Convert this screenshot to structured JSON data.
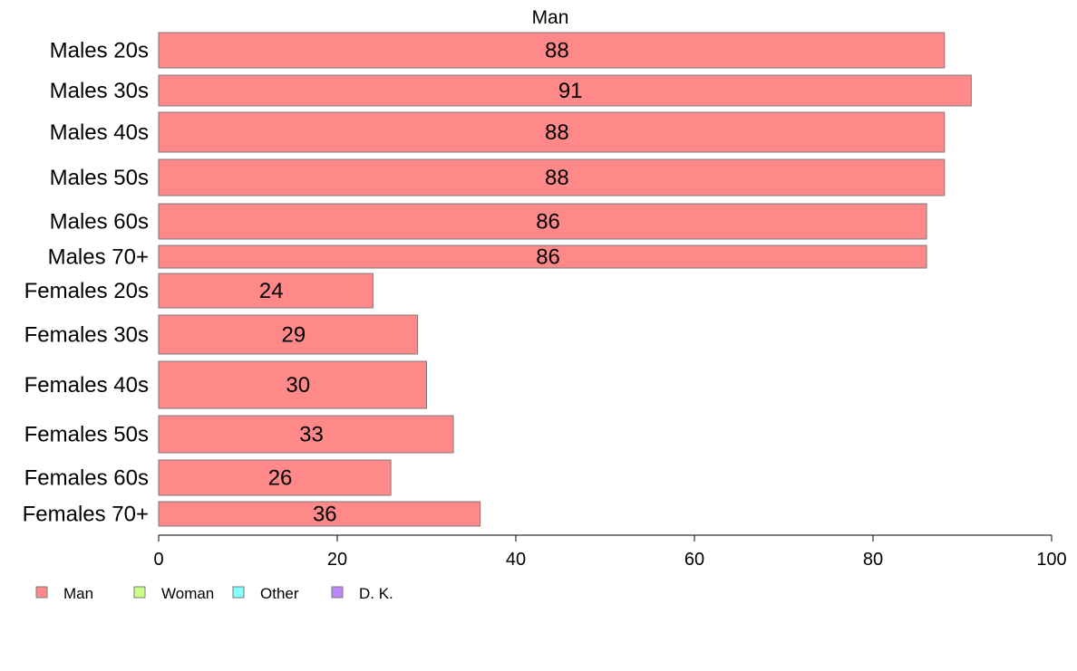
{
  "chart_data": {
    "type": "bar",
    "orientation": "horizontal",
    "title": "Man",
    "xlabel": "",
    "ylabel": "",
    "xlim": [
      0,
      100
    ],
    "x_ticks": [
      0,
      20,
      40,
      60,
      80,
      100
    ],
    "grid": false,
    "legend_position": "bottom-left",
    "categories": [
      "Males 20s",
      "Males 30s",
      "Males 40s",
      "Males 50s",
      "Males 60s",
      "Males 70+",
      "Females 20s",
      "Females 30s",
      "Females 40s",
      "Females 50s",
      "Females 60s",
      "Females 70+"
    ],
    "series": [
      {
        "name": "Man",
        "color": "#FF8888",
        "values": [
          88,
          91,
          88,
          88,
          86,
          86,
          24,
          29,
          30,
          33,
          26,
          36
        ]
      }
    ],
    "legend": [
      {
        "label": "Man",
        "color": "#FF8888"
      },
      {
        "label": "Woman",
        "color": "#CCFF88"
      },
      {
        "label": "Other",
        "color": "#88FFFF"
      },
      {
        "label": "D. K.",
        "color": "#BB88FF"
      }
    ]
  }
}
